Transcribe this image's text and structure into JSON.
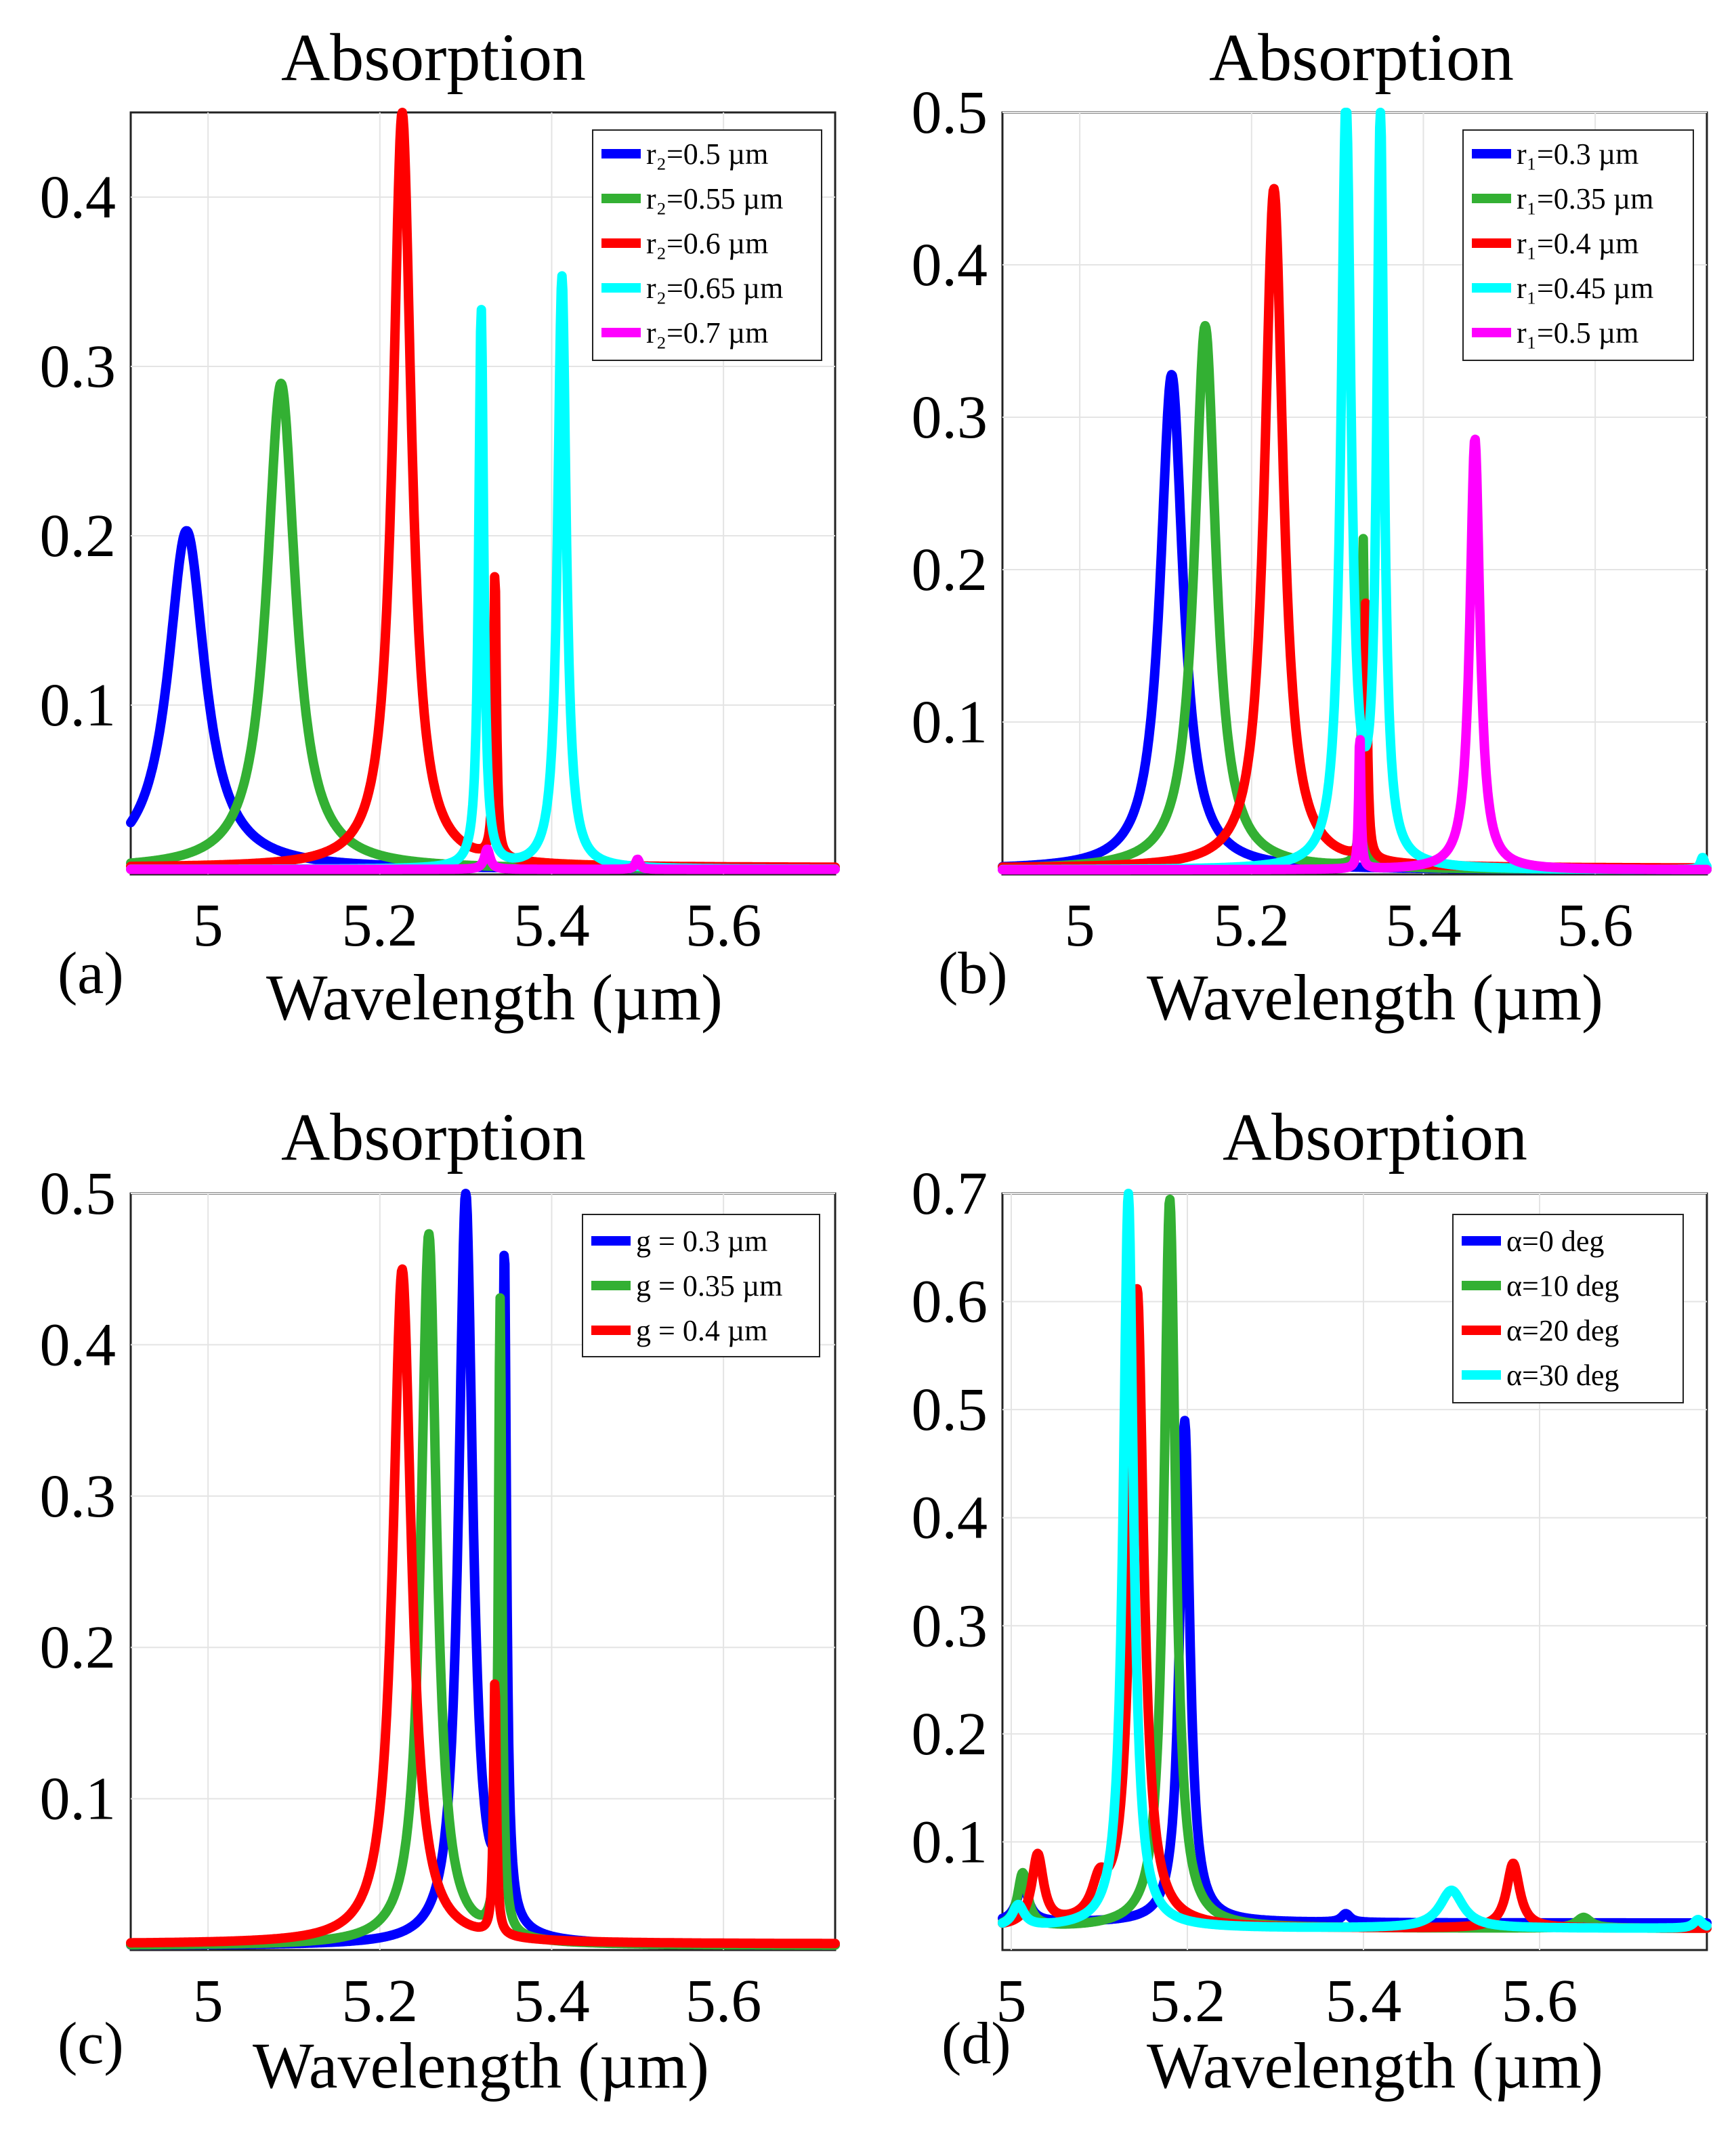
{
  "chart_data": [
    {
      "type": "line",
      "panel_label": "(a)",
      "title": "Absorption",
      "xlabel": "Wavelength (µm)",
      "ylabel": "",
      "xlim": [
        4.91,
        5.73
      ],
      "ylim": [
        0.0,
        0.45
      ],
      "xticks": [
        5,
        5.2,
        5.4,
        5.6
      ],
      "xtick_labels": [
        "5",
        "5.2",
        "5.4",
        "5.6"
      ],
      "yticks": [
        0.1,
        0.2,
        0.3,
        0.4
      ],
      "ytick_labels": [
        "0.1",
        "0.2",
        "0.3",
        "0.4"
      ],
      "grid": true,
      "legend_position": "top-right",
      "series": [
        {
          "name": "r₂=0.5 µm",
          "color": "#0000ff",
          "baseline": 0.003,
          "peaks": [
            {
              "x": 4.975,
              "h": 0.2,
              "w": 0.026
            }
          ]
        },
        {
          "name": "r₂=0.55 µm",
          "color": "#33b033",
          "baseline": 0.003,
          "peaks": [
            {
              "x": 5.085,
              "h": 0.287,
              "w": 0.02
            }
          ]
        },
        {
          "name": "r₂=0.6 µm",
          "color": "#ff0000",
          "baseline": 0.004,
          "peaks": [
            {
              "x": 5.226,
              "h": 0.446,
              "w": 0.013
            },
            {
              "x": 5.334,
              "h": 0.17,
              "w": 0.002
            }
          ]
        },
        {
          "name": "r₂=0.65 µm",
          "color": "#00ffff",
          "baseline": 0.003,
          "peaks": [
            {
              "x": 5.318,
              "h": 0.33,
              "w": 0.0035
            },
            {
              "x": 5.412,
              "h": 0.35,
              "w": 0.006
            }
          ]
        },
        {
          "name": "r₂=0.7 µm",
          "color": "#ff00ff",
          "baseline": 0.003,
          "peaks": [
            {
              "x": 5.325,
              "h": 0.012,
              "w": 0.004
            },
            {
              "x": 5.5,
              "h": 0.006,
              "w": 0.003
            }
          ]
        }
      ]
    },
    {
      "type": "line",
      "panel_label": "(b)",
      "title": "Absorption",
      "xlabel": "Wavelength (µm)",
      "ylabel": "",
      "xlim": [
        4.91,
        5.73
      ],
      "ylim": [
        0.0,
        0.5
      ],
      "xticks": [
        5,
        5.2,
        5.4,
        5.6
      ],
      "xtick_labels": [
        "5",
        "5.2",
        "5.4",
        "5.6"
      ],
      "yticks": [
        0.1,
        0.2,
        0.3,
        0.4,
        0.5
      ],
      "ytick_labels": [
        "0.1",
        "0.2",
        "0.3",
        "0.4",
        "0.5"
      ],
      "grid": true,
      "legend_position": "top-right",
      "series": [
        {
          "name": "r₁=0.3 µm",
          "color": "#0000ff",
          "baseline": 0.003,
          "peaks": [
            {
              "x": 5.107,
              "h": 0.325,
              "w": 0.016
            }
          ]
        },
        {
          "name": "r₁=0.35 µm",
          "color": "#33b033",
          "baseline": 0.003,
          "peaks": [
            {
              "x": 5.146,
              "h": 0.357,
              "w": 0.015
            },
            {
              "x": 5.33,
              "h": 0.215,
              "w": 0.002
            }
          ]
        },
        {
          "name": "r₁=0.4 µm",
          "color": "#ff0000",
          "baseline": 0.004,
          "peaks": [
            {
              "x": 5.226,
              "h": 0.446,
              "w": 0.013
            },
            {
              "x": 5.333,
              "h": 0.17,
              "w": 0.002
            }
          ]
        },
        {
          "name": "r₁=0.45 µm",
          "color": "#00ffff",
          "baseline": 0.003,
          "peaks": [
            {
              "x": 5.31,
              "h": 0.5,
              "w": 0.007
            },
            {
              "x": 5.35,
              "h": 0.485,
              "w": 0.005
            },
            {
              "x": 5.725,
              "h": 0.008,
              "w": 0.003
            }
          ]
        },
        {
          "name": "r₁=0.5 µm",
          "color": "#ff00ff",
          "baseline": 0.003,
          "peaks": [
            {
              "x": 5.326,
              "h": 0.09,
              "w": 0.0015
            },
            {
              "x": 5.46,
              "h": 0.283,
              "w": 0.007
            }
          ]
        }
      ]
    },
    {
      "type": "line",
      "panel_label": "(c)",
      "title": "Absorption",
      "xlabel": "Wavelength (µm)",
      "ylabel": "",
      "xlim": [
        4.91,
        5.73
      ],
      "ylim": [
        0.0,
        0.5
      ],
      "xticks": [
        5,
        5.2,
        5.4,
        5.6
      ],
      "xtick_labels": [
        "5",
        "5.2",
        "5.4",
        "5.6"
      ],
      "yticks": [
        0.1,
        0.2,
        0.3,
        0.4,
        0.5
      ],
      "ytick_labels": [
        "0.1",
        "0.2",
        "0.3",
        "0.4",
        "0.5"
      ],
      "grid": true,
      "legend_position": "top-right",
      "series": [
        {
          "name": "g = 0.3  µm",
          "color": "#0000ff",
          "baseline": 0.003,
          "peaks": [
            {
              "x": 5.3,
              "h": 0.496,
              "w": 0.01
            },
            {
              "x": 5.345,
              "h": 0.44,
              "w": 0.003
            }
          ]
        },
        {
          "name": "g = 0.35  µm",
          "color": "#33b033",
          "baseline": 0.003,
          "peaks": [
            {
              "x": 5.257,
              "h": 0.47,
              "w": 0.011
            },
            {
              "x": 5.34,
              "h": 0.42,
              "w": 0.0025
            }
          ]
        },
        {
          "name": "g = 0.4  µm",
          "color": "#ff0000",
          "baseline": 0.004,
          "peaks": [
            {
              "x": 5.226,
              "h": 0.446,
              "w": 0.013
            },
            {
              "x": 5.334,
              "h": 0.17,
              "w": 0.002
            }
          ]
        }
      ]
    },
    {
      "type": "line",
      "panel_label": "(d)",
      "title": "Absorption",
      "xlabel": "Wavelength (µm)",
      "ylabel": "",
      "xlim": [
        4.99,
        5.79
      ],
      "ylim": [
        0.0,
        0.7
      ],
      "xticks": [
        5,
        5.2,
        5.4,
        5.6
      ],
      "xtick_labels": [
        "5",
        "5.2",
        "5.4",
        "5.6"
      ],
      "yticks": [
        0.1,
        0.2,
        0.3,
        0.4,
        0.5,
        0.6,
        0.7
      ],
      "ytick_labels": [
        "0.1",
        "0.2",
        "0.3",
        "0.4",
        "0.5",
        "0.6",
        "0.7"
      ],
      "grid": true,
      "legend_position": "top-right",
      "series": [
        {
          "name": "α=0 deg",
          "color": "#0000ff",
          "baseline": 0.025,
          "peaks": [
            {
              "x": 5.013,
              "h": 0.035,
              "w": 0.008
            },
            {
              "x": 5.197,
              "h": 0.465,
              "w": 0.007
            },
            {
              "x": 5.38,
              "h": 0.008,
              "w": 0.006
            }
          ]
        },
        {
          "name": "α=10 deg",
          "color": "#33b033",
          "baseline": 0.02,
          "peaks": [
            {
              "x": 5.013,
              "h": 0.05,
              "w": 0.007
            },
            {
              "x": 5.18,
              "h": 0.675,
              "w": 0.008
            },
            {
              "x": 5.65,
              "h": 0.01,
              "w": 0.01
            }
          ]
        },
        {
          "name": "α=20 deg",
          "color": "#ff0000",
          "baseline": 0.02,
          "peaks": [
            {
              "x": 5.03,
              "h": 0.065,
              "w": 0.008
            },
            {
              "x": 5.1,
              "h": 0.03,
              "w": 0.01
            },
            {
              "x": 5.143,
              "h": 0.59,
              "w": 0.009
            },
            {
              "x": 5.57,
              "h": 0.06,
              "w": 0.009
            }
          ]
        },
        {
          "name": "α=30 deg",
          "color": "#00ffff",
          "baseline": 0.02,
          "peaks": [
            {
              "x": 5.008,
              "h": 0.02,
              "w": 0.008
            },
            {
              "x": 5.133,
              "h": 0.68,
              "w": 0.007
            },
            {
              "x": 5.5,
              "h": 0.035,
              "w": 0.016
            },
            {
              "x": 5.78,
              "h": 0.008,
              "w": 0.006
            }
          ]
        }
      ]
    }
  ]
}
